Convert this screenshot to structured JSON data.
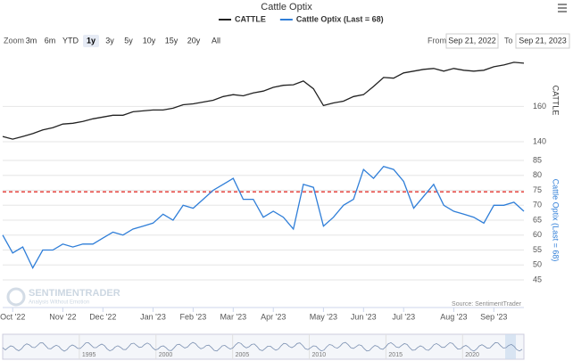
{
  "chart_data": {
    "type": "line",
    "title": "Cattle Optix",
    "categories": [
      null,
      "Oct '22",
      null,
      null,
      null,
      null,
      "Nov '22",
      null,
      null,
      null,
      "Dec '22",
      null,
      null,
      null,
      null,
      "Jan '23",
      null,
      null,
      null,
      "Feb '23",
      null,
      null,
      null,
      "Mar '23",
      null,
      null,
      null,
      "Apr '23",
      null,
      null,
      null,
      null,
      "May '23",
      null,
      null,
      null,
      "Jun '23",
      null,
      null,
      null,
      "Jul '23",
      null,
      null,
      null,
      null,
      "Aug '23",
      null,
      null,
      null,
      "Sep '23",
      null,
      null,
      null
    ],
    "series": [
      {
        "name": "CATTLE",
        "color": "#222222",
        "axis": "y",
        "values": [
          143,
          141.5,
          143,
          144.6,
          146.7,
          148,
          150,
          150.5,
          151.5,
          153,
          154,
          155,
          155,
          157,
          157.5,
          158,
          158,
          159,
          161,
          161.5,
          162.5,
          163.5,
          165.6,
          166.7,
          166,
          167.7,
          168.7,
          170.8,
          172,
          172.3,
          174.4,
          170,
          160.5,
          162,
          163,
          165.6,
          166.7,
          171.3,
          176.4,
          176,
          179,
          180,
          181,
          181.5,
          180,
          181.5,
          180.5,
          180,
          180.5,
          182.5,
          183.5,
          185,
          184.5
        ]
      },
      {
        "name": "Cattle Optix (Last = 68)",
        "color": "#2f7ed8",
        "axis": "y2",
        "values": [
          60,
          54,
          56,
          49,
          55,
          55,
          57,
          56,
          57,
          57,
          59,
          61,
          60,
          62,
          63,
          64,
          67,
          65,
          70,
          69,
          72,
          75,
          77,
          79,
          72,
          72,
          66,
          68,
          66,
          62,
          77,
          76,
          63,
          66,
          70,
          72,
          82,
          79,
          83,
          82,
          78,
          69,
          73,
          77,
          70,
          68,
          67,
          66,
          64,
          70,
          70,
          71,
          68
        ]
      }
    ],
    "ylim": [
      137,
      190
    ],
    "yticks": [
      140,
      160
    ],
    "y_label": "CATTLE",
    "y2lim": [
      42,
      88
    ],
    "y2ticks": [
      45,
      50,
      55,
      60,
      65,
      70,
      75,
      80,
      85
    ],
    "y2_label": "Cattle Optix (Last = 68)",
    "reference_line": {
      "value": 74.5,
      "color": "#e0302b",
      "axis": "y2"
    },
    "grid": true,
    "credit": "Source: SentimentTrader"
  },
  "range_selector": {
    "zoom_label": "Zoom",
    "buttons": [
      "3m",
      "6m",
      "YTD",
      "1y",
      "3y",
      "5y",
      "10y",
      "15y",
      "20y",
      "All"
    ],
    "selected": "1y",
    "from_label": "From",
    "from": "Sep 21, 2022",
    "to_label": "To",
    "to": "Sep 21, 2023"
  },
  "watermark": {
    "name": "SENTIMENTRADER",
    "tagline": "Analysis Without Emotion"
  },
  "navigator": {
    "xlim": [
      1990,
      2024
    ],
    "xticks": [
      1995,
      2000,
      2005,
      2010,
      2015,
      2020
    ]
  }
}
